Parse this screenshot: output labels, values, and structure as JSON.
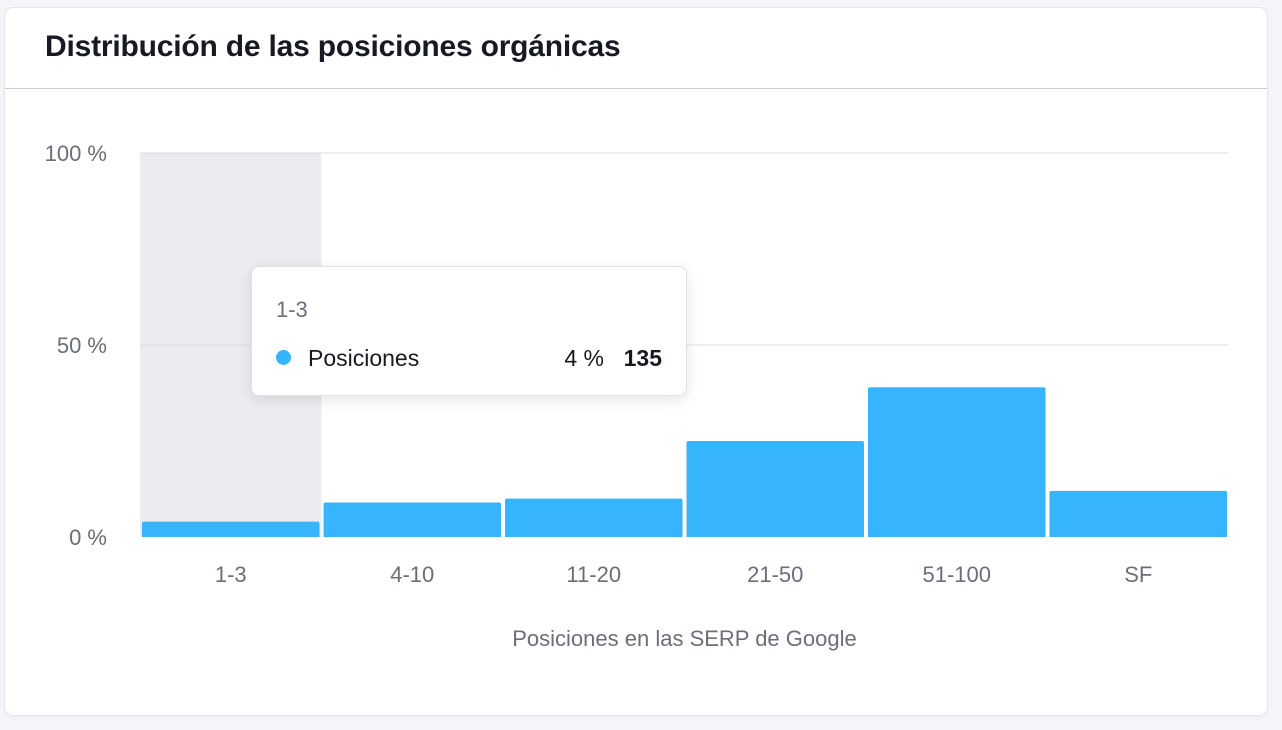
{
  "card": {
    "title": "Distribución de las posiciones orgánicas"
  },
  "chart_data": {
    "type": "bar",
    "categories": [
      "1-3",
      "4-10",
      "11-20",
      "21-50",
      "51-100",
      "SF"
    ],
    "series": [
      {
        "name": "Posiciones",
        "values": [
          4,
          9,
          10,
          25,
          39,
          12
        ]
      }
    ],
    "xlabel": "Posiciones en las SERP de Google",
    "ylabel": "",
    "ylim": [
      0,
      100
    ],
    "yticks": [
      {
        "value": 0,
        "label": "0 %"
      },
      {
        "value": 50,
        "label": "50 %"
      },
      {
        "value": 100,
        "label": "100 %"
      }
    ],
    "grid": true,
    "highlighted_category": "1-3",
    "bar_color": "#37b5fc",
    "highlight_color": "#ebecf0"
  },
  "tooltip": {
    "category": "1-3",
    "series_name": "Posiciones",
    "percent": "4 %",
    "count": "135",
    "dot_color": "#37b5fc"
  }
}
